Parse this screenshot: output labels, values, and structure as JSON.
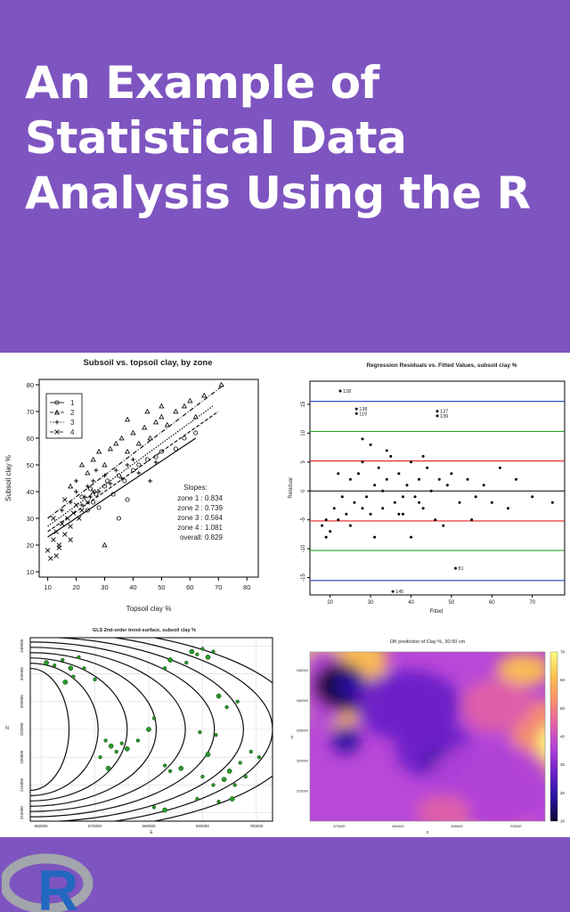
{
  "title": "An Example of Statistical Data Analysis Using the R",
  "logo": {
    "letter": "R"
  },
  "colors": {
    "background": "#7e55c0",
    "panel": "#ffffff",
    "zone": "#2040c0",
    "green": "#2aa02a",
    "red": "#e02020"
  },
  "chart_data": [
    {
      "type": "scatter",
      "title": "Subsoil vs. topsoil clay, by zone",
      "xlabel": "Topsoil clay %",
      "ylabel": "Subsoil clay %",
      "xlim": [
        7,
        84
      ],
      "ylim": [
        8,
        82
      ],
      "xticks": [
        10,
        20,
        30,
        40,
        50,
        60,
        70,
        80
      ],
      "yticks": [
        10,
        20,
        30,
        40,
        50,
        60,
        70,
        80
      ],
      "legend": {
        "placement": "top-left",
        "entries": [
          "1",
          "2",
          "3",
          "4"
        ]
      },
      "slopes_title": "Slopes:",
      "slopes": [
        "zone 1 : 0.834",
        "zone 2 : 0.739",
        "zone 3 : 0.564",
        "zone 4 : 1.081",
        "overall: 0.829"
      ],
      "lines": [
        [
          10,
          23,
          62,
          60
        ],
        [
          10,
          25,
          70,
          70
        ],
        [
          10,
          27,
          68,
          72
        ],
        [
          10,
          30,
          72,
          80
        ]
      ],
      "series": [
        {
          "name": "1",
          "marker": "circle",
          "points": [
            [
              22,
              38
            ],
            [
              25,
              41
            ],
            [
              26,
              36
            ],
            [
              28,
              34
            ],
            [
              30,
              42
            ],
            [
              31,
              44
            ],
            [
              33,
              39
            ],
            [
              35,
              46
            ],
            [
              37,
              44
            ],
            [
              40,
              48
            ],
            [
              42,
              50
            ],
            [
              45,
              52
            ],
            [
              48,
              53
            ],
            [
              50,
              55
            ],
            [
              55,
              56
            ],
            [
              58,
              60
            ],
            [
              62,
              62
            ],
            [
              35,
              30
            ],
            [
              38,
              37
            ],
            [
              27,
              39
            ],
            [
              24,
              33
            ]
          ]
        },
        {
          "name": "2",
          "marker": "triangle",
          "points": [
            [
              18,
              42
            ],
            [
              22,
              50
            ],
            [
              24,
              47
            ],
            [
              26,
              52
            ],
            [
              28,
              55
            ],
            [
              30,
              50
            ],
            [
              32,
              56
            ],
            [
              34,
              58
            ],
            [
              36,
              60
            ],
            [
              38,
              55
            ],
            [
              40,
              62
            ],
            [
              42,
              58
            ],
            [
              44,
              64
            ],
            [
              46,
              60
            ],
            [
              48,
              66
            ],
            [
              50,
              68
            ],
            [
              52,
              65
            ],
            [
              55,
              70
            ],
            [
              58,
              72
            ],
            [
              60,
              74
            ],
            [
              62,
              68
            ],
            [
              65,
              76
            ],
            [
              71,
              80
            ],
            [
              45,
              70
            ],
            [
              38,
              67
            ],
            [
              30,
              20
            ],
            [
              50,
              72
            ]
          ]
        },
        {
          "name": "3",
          "marker": "plus",
          "points": [
            [
              15,
              33
            ],
            [
              18,
              36
            ],
            [
              20,
              40
            ],
            [
              22,
              35
            ],
            [
              24,
              42
            ],
            [
              25,
              38
            ],
            [
              26,
              44
            ],
            [
              28,
              40
            ],
            [
              30,
              46
            ],
            [
              32,
              43
            ],
            [
              34,
              48
            ],
            [
              36,
              45
            ],
            [
              38,
              50
            ],
            [
              40,
              52
            ],
            [
              42,
              47
            ],
            [
              46,
              44
            ],
            [
              48,
              51
            ],
            [
              20,
              44
            ],
            [
              23,
              38
            ],
            [
              27,
              48
            ]
          ]
        },
        {
          "name": "4",
          "marker": "cross",
          "points": [
            [
              10,
              18
            ],
            [
              11,
              15
            ],
            [
              12,
              22
            ],
            [
              13,
              25
            ],
            [
              14,
              20
            ],
            [
              15,
              28
            ],
            [
              16,
              24
            ],
            [
              17,
              30
            ],
            [
              18,
              27
            ],
            [
              19,
              32
            ],
            [
              20,
              35
            ],
            [
              21,
              30
            ],
            [
              22,
              33
            ],
            [
              24,
              36
            ],
            [
              26,
              40
            ],
            [
              12,
              30
            ],
            [
              14,
              19
            ],
            [
              16,
              37
            ],
            [
              18,
              22
            ],
            [
              13,
              16
            ]
          ]
        }
      ]
    },
    {
      "type": "scatter",
      "title": "Regression Residuals vs. Fitted Values, subsoil clay %",
      "xlabel": "Fitted",
      "ylabel": "Residual",
      "xlim": [
        15,
        78
      ],
      "ylim": [
        -18,
        19
      ],
      "xticks": [
        20,
        30,
        40,
        50,
        60,
        70
      ],
      "yticks": [
        -15,
        -10,
        -5,
        0,
        5,
        10,
        15
      ],
      "hlines": [
        {
          "y": 15.5,
          "color": "#2040c0"
        },
        {
          "y": 10.3,
          "color": "#2aa02a"
        },
        {
          "y": 5.2,
          "color": "#e02020"
        },
        {
          "y": 0,
          "color": "#000000"
        },
        {
          "y": -5.2,
          "color": "#e02020"
        },
        {
          "y": -10.3,
          "color": "#2aa02a"
        },
        {
          "y": -15.5,
          "color": "#2040c0"
        }
      ],
      "labels": [
        {
          "x": 22.5,
          "y": 17.3,
          "text": "128"
        },
        {
          "x": 26.5,
          "y": 14.2,
          "text": "138"
        },
        {
          "x": 26.5,
          "y": 13.4,
          "text": "119"
        },
        {
          "x": 46.5,
          "y": 13.8,
          "text": "137"
        },
        {
          "x": 46.5,
          "y": 13.0,
          "text": "139"
        },
        {
          "x": 51,
          "y": -13.4,
          "text": "81"
        },
        {
          "x": 35.5,
          "y": -17.4,
          "text": "145"
        }
      ],
      "points": [
        [
          22.5,
          17.3
        ],
        [
          26.5,
          14.2
        ],
        [
          26.5,
          13.4
        ],
        [
          46.5,
          13.8
        ],
        [
          46.5,
          13.0
        ],
        [
          51,
          -13.4
        ],
        [
          35.5,
          -17.4
        ],
        [
          18,
          -6
        ],
        [
          19,
          -5
        ],
        [
          20,
          -7
        ],
        [
          21,
          -3
        ],
        [
          22,
          -5
        ],
        [
          23,
          -1
        ],
        [
          24,
          -4
        ],
        [
          25,
          2
        ],
        [
          26,
          -2
        ],
        [
          27,
          3
        ],
        [
          28,
          5
        ],
        [
          29,
          -1
        ],
        [
          30,
          8
        ],
        [
          31,
          1
        ],
        [
          32,
          4
        ],
        [
          33,
          -3
        ],
        [
          34,
          2
        ],
        [
          35,
          6
        ],
        [
          36,
          -2
        ],
        [
          37,
          3
        ],
        [
          38,
          -4
        ],
        [
          39,
          1
        ],
        [
          40,
          5
        ],
        [
          41,
          -1
        ],
        [
          42,
          2
        ],
        [
          43,
          -3
        ],
        [
          44,
          4
        ],
        [
          45,
          0
        ],
        [
          46,
          -5
        ],
        [
          47,
          2
        ],
        [
          48,
          -6
        ],
        [
          49,
          1
        ],
        [
          50,
          3
        ],
        [
          52,
          -2
        ],
        [
          54,
          2
        ],
        [
          56,
          -1
        ],
        [
          58,
          1
        ],
        [
          60,
          -2
        ],
        [
          62,
          4
        ],
        [
          64,
          -3
        ],
        [
          66,
          2
        ],
        [
          70,
          -1
        ],
        [
          75,
          -2
        ],
        [
          19,
          -8
        ],
        [
          22,
          3
        ],
        [
          25,
          -6
        ],
        [
          28,
          9
        ],
        [
          31,
          -8
        ],
        [
          34,
          7
        ],
        [
          37,
          -4
        ],
        [
          40,
          -8
        ],
        [
          43,
          6
        ],
        [
          55,
          -5
        ],
        [
          28,
          -3
        ],
        [
          33,
          0
        ],
        [
          38,
          -1
        ],
        [
          42,
          -2
        ],
        [
          30,
          -4
        ]
      ]
    },
    {
      "type": "scatter",
      "title": "GLS 2nd-order trend-surface, subsoil clay %",
      "xlabel": "E",
      "ylabel": "N",
      "xlim": [
        658000,
        703000
      ],
      "ylim": [
        308500,
        341500
      ],
      "xticks": [
        660000,
        670000,
        680000,
        690000,
        700000
      ],
      "yticks": [
        310000,
        315000,
        320000,
        325000,
        330000,
        335000,
        340000
      ],
      "contours": [
        0.16,
        0.28,
        0.4,
        0.52,
        0.64,
        0.76,
        0.88,
        1.0,
        1.12
      ],
      "points": [
        [
          661000,
          337000
        ],
        [
          662500,
          336500
        ],
        [
          664000,
          337500
        ],
        [
          665500,
          336000
        ],
        [
          667000,
          338000
        ],
        [
          666000,
          334500
        ],
        [
          664500,
          333500
        ],
        [
          668000,
          336000
        ],
        [
          670000,
          334000
        ],
        [
          688000,
          339000
        ],
        [
          689000,
          338500
        ],
        [
          690000,
          339500
        ],
        [
          691000,
          338000
        ],
        [
          692000,
          339000
        ],
        [
          687000,
          337000
        ],
        [
          684000,
          337500
        ],
        [
          683000,
          336000
        ],
        [
          672000,
          323000
        ],
        [
          673000,
          322000
        ],
        [
          674000,
          321000
        ],
        [
          675000,
          322500
        ],
        [
          676000,
          321500
        ],
        [
          678000,
          323000
        ],
        [
          671000,
          320000
        ],
        [
          672500,
          318000
        ],
        [
          683000,
          318500
        ],
        [
          684000,
          317500
        ],
        [
          686000,
          318000
        ],
        [
          690000,
          316500
        ],
        [
          692000,
          315000
        ],
        [
          694000,
          316000
        ],
        [
          696000,
          315000
        ],
        [
          698000,
          316500
        ],
        [
          695000,
          317500
        ],
        [
          697000,
          319000
        ],
        [
          681000,
          311000
        ],
        [
          683000,
          310500
        ],
        [
          689000,
          312500
        ],
        [
          693000,
          312000
        ],
        [
          695500,
          312500
        ],
        [
          699000,
          321000
        ],
        [
          700500,
          320000
        ],
        [
          691000,
          320500
        ],
        [
          694500,
          329000
        ],
        [
          696500,
          330000
        ],
        [
          693000,
          331000
        ],
        [
          689500,
          324500
        ],
        [
          692500,
          324000
        ],
        [
          680000,
          325000
        ],
        [
          681000,
          327000
        ]
      ]
    },
    {
      "type": "heatmap",
      "title": "OK prediction of Clay %, 30-50 cm",
      "xlabel": "x",
      "ylabel": "y",
      "xticks": [
        670000,
        680000,
        690000,
        700000
      ],
      "yticks": [
        315000,
        320000,
        325000,
        330000,
        335000
      ],
      "colorbar": {
        "min": 10,
        "max": 70,
        "ticks": [
          10,
          20,
          30,
          40,
          50,
          60,
          70
        ]
      },
      "colors": [
        "#0b0630",
        "#2a12a0",
        "#6a20c8",
        "#b040d8",
        "#e060a8",
        "#f8906a",
        "#fcc050",
        "#fcfd80"
      ]
    }
  ]
}
